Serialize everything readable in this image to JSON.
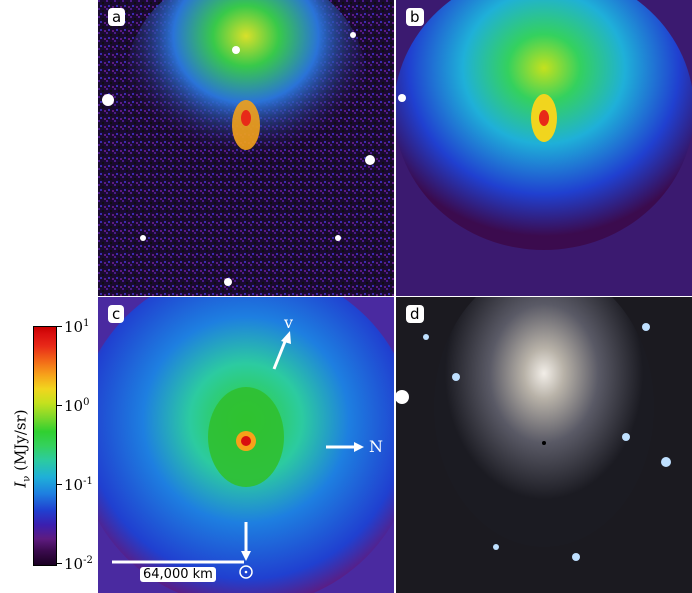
{
  "panels": [
    {
      "label": "a"
    },
    {
      "label": "b"
    },
    {
      "label": "c"
    },
    {
      "label": "d"
    }
  ],
  "colorbar": {
    "label_symbol": "I",
    "label_sub": "ν",
    "label_units": "(MJy/sr)",
    "ticks": [
      {
        "base": "10",
        "exp": "1"
      },
      {
        "base": "10",
        "exp": "0"
      },
      {
        "base": "10",
        "exp": "-1"
      },
      {
        "base": "10",
        "exp": "-2"
      }
    ]
  },
  "annotations": {
    "velocity_label": "v",
    "north_label": "N",
    "scale_label": "64,000 km"
  },
  "colors": {
    "background_purple": "#2a0f4e",
    "glow_blue": "#1e7fe0",
    "coma_green": "#34d15e",
    "nucleus_red": "#d90f0f",
    "arrow_white": "#ffffff"
  }
}
